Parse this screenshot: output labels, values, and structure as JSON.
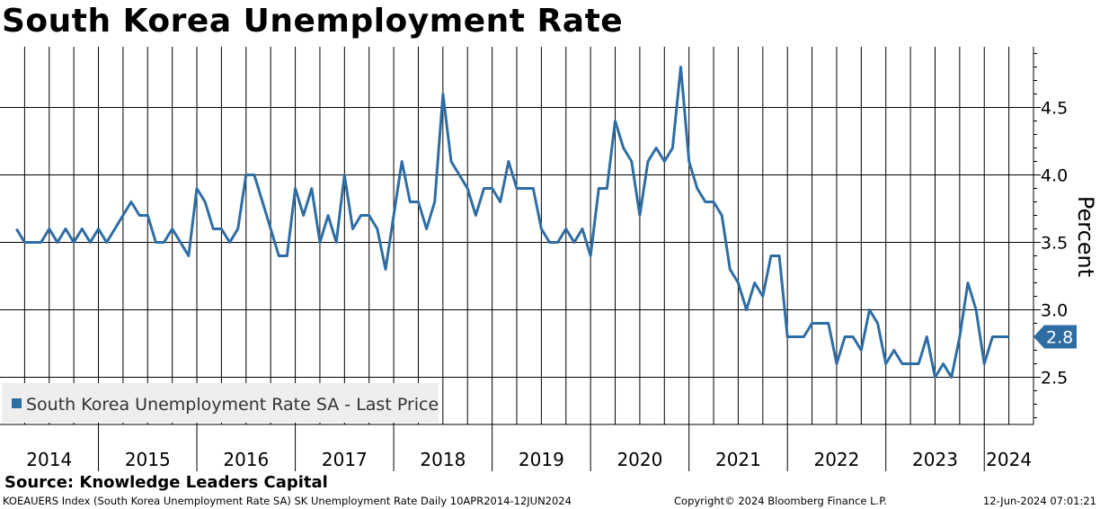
{
  "chart_data": {
    "type": "line",
    "title": "South Korea Unemployment Rate",
    "ylabel": "Percent",
    "xlabel": "",
    "ylim": [
      2.15,
      4.95
    ],
    "yticks": [
      2.5,
      3.0,
      3.5,
      4.0,
      4.5
    ],
    "ytick_labels": [
      "2.5",
      "3.0",
      "3.5",
      "4.0",
      "4.5"
    ],
    "xlim": [
      2014.0,
      2024.5
    ],
    "year_labels": [
      "2014",
      "2015",
      "2016",
      "2017",
      "2018",
      "2019",
      "2020",
      "2021",
      "2022",
      "2023",
      "2024"
    ],
    "legend": "South Korea Unemployment Rate SA - Last Price",
    "legend_position": "bottom-left",
    "last_value": 2.8,
    "last_value_label": "2.8",
    "series": [
      {
        "name": "South Korea Unemployment Rate SA - Last Price",
        "color": "#2e6da4",
        "start": "2014-03",
        "frequency": "monthly",
        "values": [
          3.6,
          3.5,
          3.5,
          3.5,
          3.6,
          3.5,
          3.6,
          3.5,
          3.6,
          3.5,
          3.6,
          3.5,
          3.6,
          3.7,
          3.8,
          3.7,
          3.7,
          3.5,
          3.5,
          3.6,
          3.5,
          3.4,
          3.9,
          3.8,
          3.6,
          3.6,
          3.5,
          3.6,
          4.0,
          4.0,
          3.8,
          3.6,
          3.4,
          3.4,
          3.9,
          3.7,
          3.9,
          3.5,
          3.7,
          3.5,
          4.0,
          3.6,
          3.7,
          3.7,
          3.6,
          3.3,
          3.7,
          4.1,
          3.8,
          3.8,
          3.6,
          3.8,
          4.6,
          4.1,
          4.0,
          3.9,
          3.7,
          3.9,
          3.9,
          3.8,
          4.1,
          3.9,
          3.9,
          3.9,
          3.6,
          3.5,
          3.5,
          3.6,
          3.5,
          3.6,
          3.4,
          3.9,
          3.9,
          4.4,
          4.2,
          4.1,
          3.7,
          4.1,
          4.2,
          4.1,
          4.2,
          4.8,
          4.1,
          3.9,
          3.8,
          3.8,
          3.7,
          3.3,
          3.2,
          3.0,
          3.2,
          3.1,
          3.4,
          3.4,
          2.8,
          2.8,
          2.8,
          2.9,
          2.9,
          2.9,
          2.6,
          2.8,
          2.8,
          2.7,
          3.0,
          2.9,
          2.6,
          2.7,
          2.6,
          2.6,
          2.6,
          2.8,
          2.5,
          2.6,
          2.5,
          2.8,
          3.2,
          3.0,
          2.6,
          2.8,
          2.8,
          2.8
        ]
      }
    ]
  },
  "source": "Source: Knowledge Leaders Capital",
  "footer": {
    "left": "KOEAUERS Index (South Korea Unemployment Rate SA) SK Unemployment Rate  Daily 10APR2014-12JUN2024",
    "middle": "Copyright© 2024 Bloomberg Finance L.P.",
    "right": "12-Jun-2024 07:01:21"
  }
}
